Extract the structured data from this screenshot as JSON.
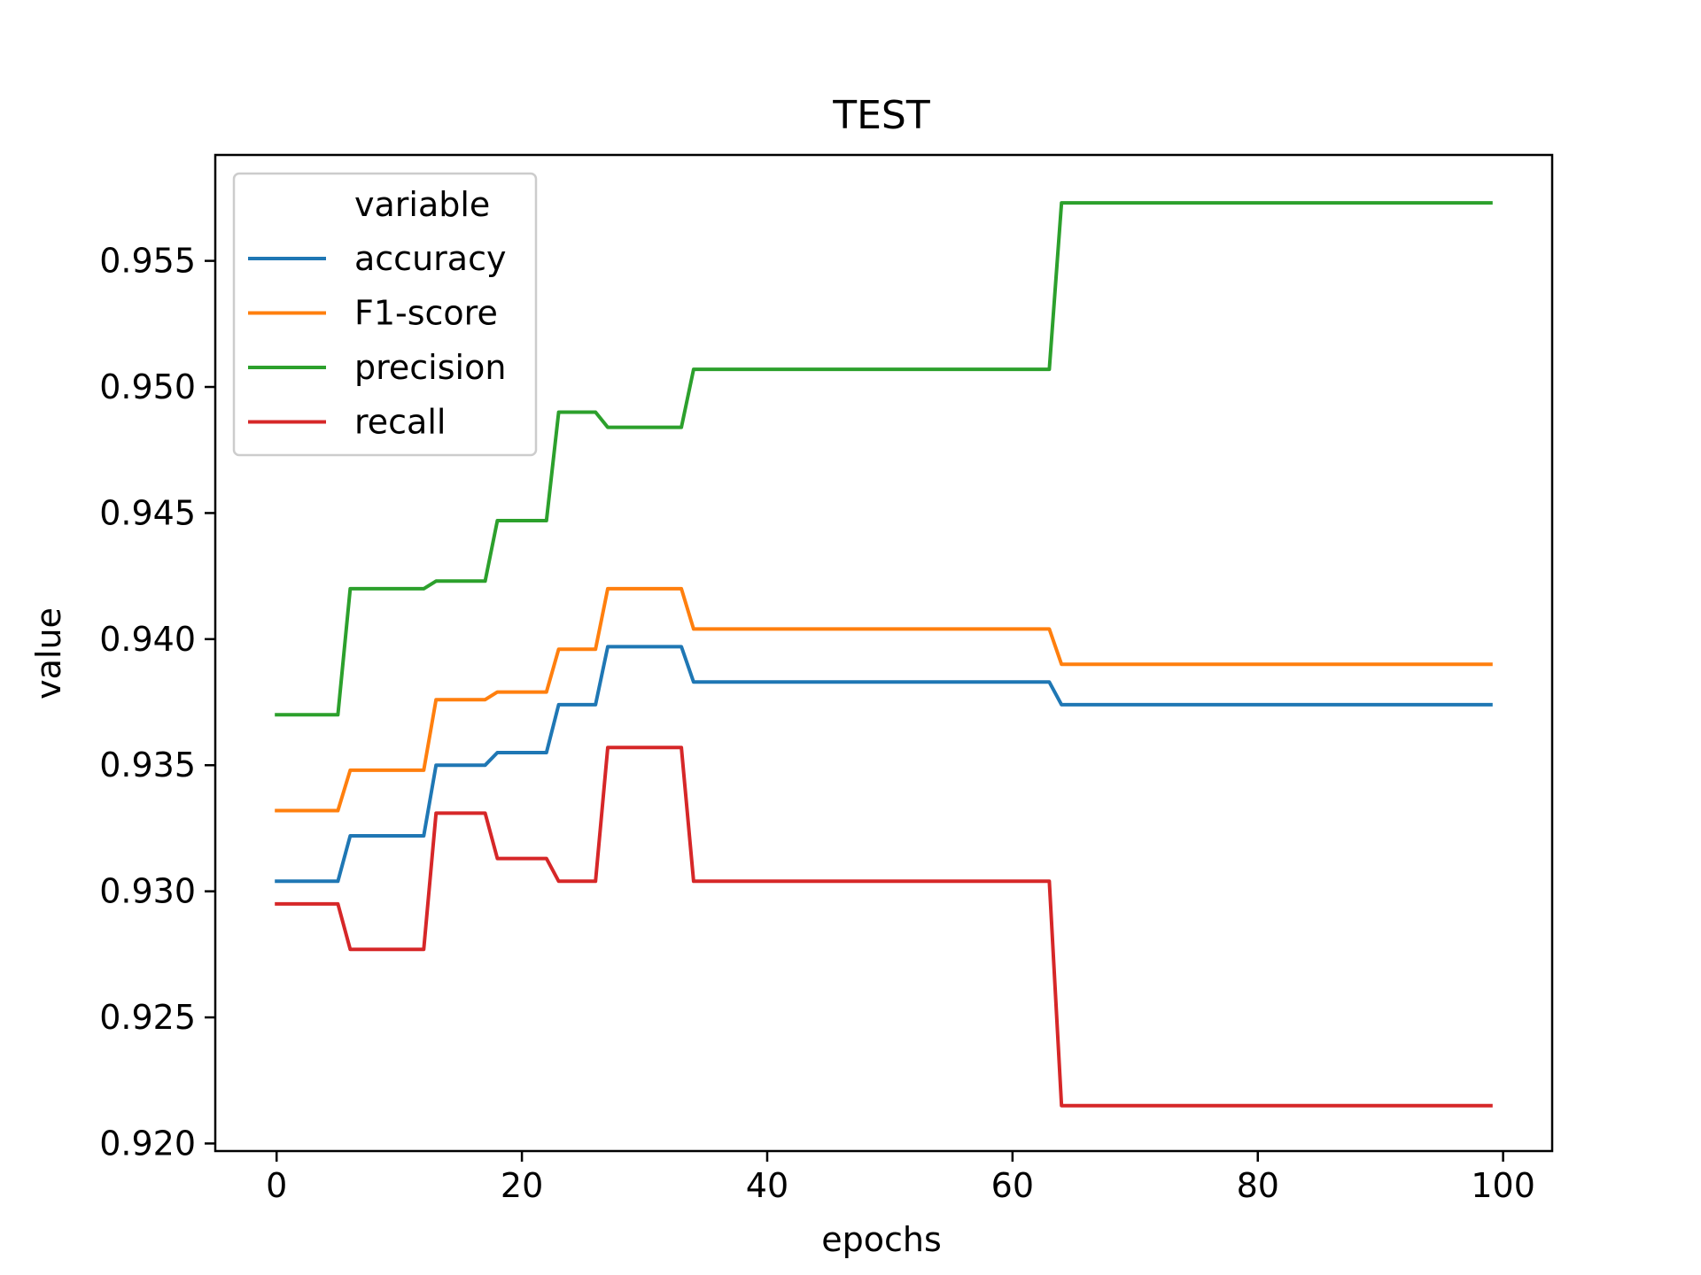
{
  "chart_data": {
    "type": "line",
    "title": "TEST",
    "xlabel": "epochs",
    "ylabel": "value",
    "xlim": [
      -5,
      104
    ],
    "ylim": [
      0.9197,
      0.9592
    ],
    "xticks": [
      0,
      20,
      40,
      60,
      80,
      100
    ],
    "yticks": [
      0.92,
      0.925,
      0.93,
      0.935,
      0.94,
      0.945,
      0.95,
      0.955
    ],
    "xtick_labels": [
      "0",
      "20",
      "40",
      "60",
      "80",
      "100"
    ],
    "ytick_labels": [
      "0.920",
      "0.925",
      "0.930",
      "0.935",
      "0.940",
      "0.945",
      "0.950",
      "0.955"
    ],
    "grid": false,
    "legend": {
      "title": "variable",
      "placement": "top-left"
    },
    "series": [
      {
        "name": "accuracy",
        "color": "#1f77b4",
        "points": [
          [
            0,
            0.9304
          ],
          [
            5,
            0.9304
          ],
          [
            6,
            0.9322
          ],
          [
            12,
            0.9322
          ],
          [
            13,
            0.935
          ],
          [
            17,
            0.935
          ],
          [
            18,
            0.9355
          ],
          [
            22,
            0.9355
          ],
          [
            23,
            0.9374
          ],
          [
            26,
            0.9374
          ],
          [
            27,
            0.9397
          ],
          [
            33,
            0.9397
          ],
          [
            34,
            0.9383
          ],
          [
            63,
            0.9383
          ],
          [
            64,
            0.9374
          ],
          [
            99,
            0.9374
          ]
        ]
      },
      {
        "name": "F1-score",
        "color": "#ff7f0e",
        "points": [
          [
            0,
            0.9332
          ],
          [
            5,
            0.9332
          ],
          [
            6,
            0.9348
          ],
          [
            12,
            0.9348
          ],
          [
            13,
            0.9376
          ],
          [
            17,
            0.9376
          ],
          [
            18,
            0.9379
          ],
          [
            22,
            0.9379
          ],
          [
            23,
            0.9396
          ],
          [
            26,
            0.9396
          ],
          [
            27,
            0.942
          ],
          [
            33,
            0.942
          ],
          [
            34,
            0.9404
          ],
          [
            63,
            0.9404
          ],
          [
            64,
            0.939
          ],
          [
            99,
            0.939
          ]
        ]
      },
      {
        "name": "precision",
        "color": "#2ca02c",
        "points": [
          [
            0,
            0.937
          ],
          [
            5,
            0.937
          ],
          [
            6,
            0.942
          ],
          [
            12,
            0.942
          ],
          [
            13,
            0.9423
          ],
          [
            17,
            0.9423
          ],
          [
            18,
            0.9447
          ],
          [
            22,
            0.9447
          ],
          [
            23,
            0.949
          ],
          [
            26,
            0.949
          ],
          [
            27,
            0.9484
          ],
          [
            33,
            0.9484
          ],
          [
            34,
            0.9507
          ],
          [
            63,
            0.9507
          ],
          [
            64,
            0.9573
          ],
          [
            99,
            0.9573
          ]
        ]
      },
      {
        "name": "recall",
        "color": "#d62728",
        "points": [
          [
            0,
            0.9295
          ],
          [
            5,
            0.9295
          ],
          [
            6,
            0.9277
          ],
          [
            12,
            0.9277
          ],
          [
            13,
            0.9331
          ],
          [
            17,
            0.9331
          ],
          [
            18,
            0.9313
          ],
          [
            22,
            0.9313
          ],
          [
            23,
            0.9304
          ],
          [
            26,
            0.9304
          ],
          [
            27,
            0.9357
          ],
          [
            33,
            0.9357
          ],
          [
            34,
            0.9304
          ],
          [
            63,
            0.9304
          ],
          [
            64,
            0.9215
          ],
          [
            99,
            0.9215
          ]
        ]
      }
    ]
  }
}
